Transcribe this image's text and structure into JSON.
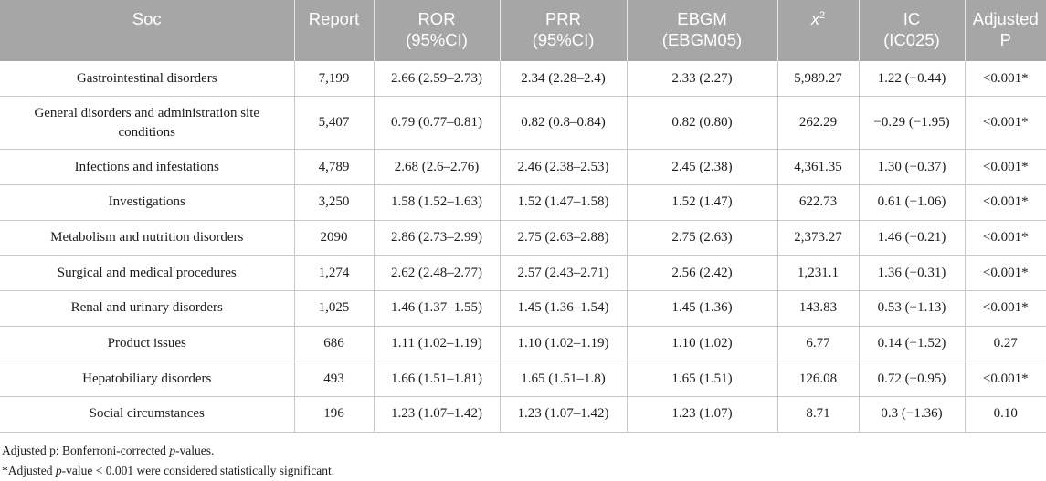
{
  "table": {
    "headers": [
      {
        "line1": "Soc",
        "line2": ""
      },
      {
        "line1": "Report",
        "line2": ""
      },
      {
        "line1": "ROR",
        "line2": "(95%CI)"
      },
      {
        "line1": "PRR",
        "line2": "(95%CI)"
      },
      {
        "line1": "EBGM",
        "line2": "(EBGM05)"
      },
      {
        "line1": "x",
        "sup": "2"
      },
      {
        "line1": "IC",
        "line2": "(IC025)"
      },
      {
        "line1": "Adjusted",
        "line2": "P"
      }
    ],
    "rows": [
      {
        "soc": "Gastrointestinal disorders",
        "report": "7,199",
        "ror": "2.66 (2.59–2.73)",
        "prr": "2.34 (2.28–2.4)",
        "ebgm": "2.33 (2.27)",
        "chi2": "5,989.27",
        "ic": "1.22 (−0.44)",
        "p": "<0.001*"
      },
      {
        "soc": "General disorders and administration site conditions",
        "report": "5,407",
        "ror": "0.79 (0.77–0.81)",
        "prr": "0.82 (0.8–0.84)",
        "ebgm": "0.82 (0.80)",
        "chi2": "262.29",
        "ic": "−0.29 (−1.95)",
        "p": "<0.001*"
      },
      {
        "soc": "Infections and infestations",
        "report": "4,789",
        "ror": "2.68 (2.6–2.76)",
        "prr": "2.46 (2.38–2.53)",
        "ebgm": "2.45 (2.38)",
        "chi2": "4,361.35",
        "ic": "1.30 (−0.37)",
        "p": "<0.001*"
      },
      {
        "soc": "Investigations",
        "report": "3,250",
        "ror": "1.58 (1.52–1.63)",
        "prr": "1.52 (1.47–1.58)",
        "ebgm": "1.52 (1.47)",
        "chi2": "622.73",
        "ic": "0.61 (−1.06)",
        "p": "<0.001*"
      },
      {
        "soc": "Metabolism and nutrition disorders",
        "report": "2090",
        "ror": "2.86 (2.73–2.99)",
        "prr": "2.75 (2.63–2.88)",
        "ebgm": "2.75 (2.63)",
        "chi2": "2,373.27",
        "ic": "1.46 (−0.21)",
        "p": "<0.001*"
      },
      {
        "soc": "Surgical and medical procedures",
        "report": "1,274",
        "ror": "2.62 (2.48–2.77)",
        "prr": "2.57 (2.43–2.71)",
        "ebgm": "2.56 (2.42)",
        "chi2": "1,231.1",
        "ic": "1.36 (−0.31)",
        "p": "<0.001*"
      },
      {
        "soc": "Renal and urinary disorders",
        "report": "1,025",
        "ror": "1.46 (1.37–1.55)",
        "prr": "1.45 (1.36–1.54)",
        "ebgm": "1.45 (1.36)",
        "chi2": "143.83",
        "ic": "0.53 (−1.13)",
        "p": "<0.001*"
      },
      {
        "soc": "Product issues",
        "report": "686",
        "ror": "1.11 (1.02–1.19)",
        "prr": "1.10 (1.02–1.19)",
        "ebgm": "1.10 (1.02)",
        "chi2": "6.77",
        "ic": "0.14 (−1.52)",
        "p": "0.27"
      },
      {
        "soc": "Hepatobiliary disorders",
        "report": "493",
        "ror": "1.66 (1.51–1.81)",
        "prr": "1.65 (1.51–1.8)",
        "ebgm": "1.65 (1.51)",
        "chi2": "126.08",
        "ic": "0.72 (−0.95)",
        "p": "<0.001*"
      },
      {
        "soc": "Social circumstances",
        "report": "196",
        "ror": "1.23 (1.07–1.42)",
        "prr": "1.23 (1.07–1.42)",
        "ebgm": "1.23 (1.07)",
        "chi2": "8.71",
        "ic": "0.3 (−1.36)",
        "p": "0.10"
      }
    ]
  },
  "notes": {
    "note1_prefix": "Adjusted p: Bonferroni-corrected ",
    "note1_italic": "p",
    "note1_suffix": "-values.",
    "note2_prefix": "*Adjusted ",
    "note2_italic": "p",
    "note2_suffix": "-value < 0.001 were considered statistically significant."
  },
  "colors": {
    "header_bg": "#a6a6a6",
    "header_text": "#ffffff",
    "grid": "#c8c8c8"
  }
}
